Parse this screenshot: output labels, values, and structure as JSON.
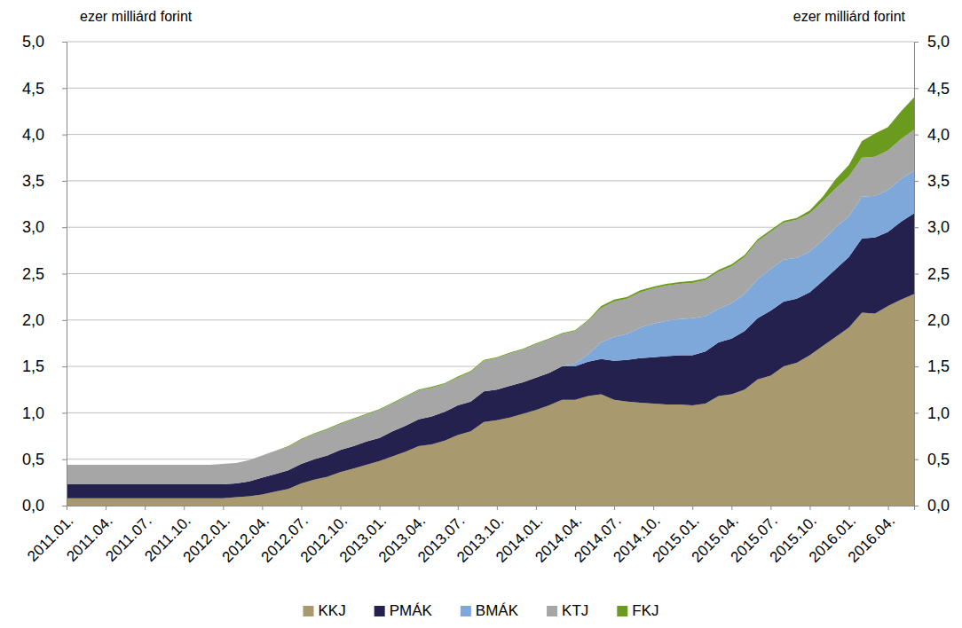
{
  "chart_data": {
    "type": "area",
    "stacked": true,
    "grid": true,
    "legend": "bottom",
    "ylabel": "ezer milliárd forint",
    "y2label": "ezer milliárd forint",
    "categories": [
      "2011.01.",
      null,
      null,
      "2011.04.",
      null,
      null,
      "2011.07.",
      null,
      null,
      "2011.10.",
      null,
      null,
      "2012.01.",
      null,
      null,
      "2012.04.",
      null,
      null,
      "2012.07.",
      null,
      null,
      "2012.10.",
      null,
      null,
      "2013.01.",
      null,
      null,
      "2013.04.",
      null,
      null,
      "2013.07.",
      null,
      null,
      "2013.10.",
      null,
      null,
      "2014.01.",
      null,
      null,
      "2014.04.",
      null,
      null,
      "2014.07.",
      null,
      null,
      "2014.10.",
      null,
      null,
      "2015.01.",
      null,
      null,
      "2015.04.",
      null,
      null,
      "2015.07.",
      null,
      null,
      "2015.10.",
      null,
      null,
      "2016.01.",
      null,
      null,
      "2016.04.",
      null,
      null
    ],
    "ylim": [
      0,
      5
    ],
    "yticks": [
      {
        "value": 0,
        "label": "0,0"
      },
      {
        "value": 0.5,
        "label": "0,5"
      },
      {
        "value": 1,
        "label": "1,0"
      },
      {
        "value": 1.5,
        "label": "1,5"
      },
      {
        "value": 2,
        "label": "2,0"
      },
      {
        "value": 2.5,
        "label": "2,5"
      },
      {
        "value": 3,
        "label": "3,0"
      },
      {
        "value": 3.5,
        "label": "3,5"
      },
      {
        "value": 4,
        "label": "4,0"
      },
      {
        "value": 4.5,
        "label": "4,5"
      },
      {
        "value": 5,
        "label": "5,0"
      }
    ],
    "y2lim": [
      0,
      5
    ],
    "y2ticks": [
      {
        "value": 0,
        "label": "0,0"
      },
      {
        "value": 0.5,
        "label": "0,5"
      },
      {
        "value": 1,
        "label": "1,0"
      },
      {
        "value": 1.5,
        "label": "1,5"
      },
      {
        "value": 2,
        "label": "2,0"
      },
      {
        "value": 2.5,
        "label": "2,5"
      },
      {
        "value": 3,
        "label": "3,0"
      },
      {
        "value": 3.5,
        "label": "3,5"
      },
      {
        "value": 4,
        "label": "4,0"
      },
      {
        "value": 4.5,
        "label": "4,5"
      },
      {
        "value": 5,
        "label": "5,0"
      }
    ],
    "series": [
      {
        "name": "KKJ",
        "color": "#a89a6e",
        "values": [
          0.08,
          0.08,
          0.08,
          0.08,
          0.08,
          0.08,
          0.08,
          0.08,
          0.08,
          0.08,
          0.08,
          0.08,
          0.08,
          0.09,
          0.1,
          0.12,
          0.15,
          0.18,
          0.24,
          0.28,
          0.31,
          0.36,
          0.4,
          0.44,
          0.48,
          0.53,
          0.58,
          0.64,
          0.66,
          0.7,
          0.76,
          0.8,
          0.9,
          0.92,
          0.95,
          0.99,
          1.03,
          1.08,
          1.14,
          1.14,
          1.18,
          1.2,
          1.14,
          1.12,
          1.11,
          1.1,
          1.09,
          1.09,
          1.08,
          1.1,
          1.18,
          1.2,
          1.25,
          1.36,
          1.4,
          1.5,
          1.54,
          1.62,
          1.72,
          1.82,
          1.92,
          2.08,
          2.07,
          2.15,
          2.22,
          2.28
        ]
      },
      {
        "name": "PMÁK",
        "color": "#24214f",
        "values": [
          0.15,
          0.15,
          0.15,
          0.15,
          0.15,
          0.15,
          0.15,
          0.15,
          0.15,
          0.15,
          0.15,
          0.15,
          0.15,
          0.15,
          0.16,
          0.18,
          0.19,
          0.2,
          0.21,
          0.22,
          0.23,
          0.24,
          0.24,
          0.25,
          0.25,
          0.27,
          0.28,
          0.29,
          0.3,
          0.31,
          0.32,
          0.32,
          0.33,
          0.33,
          0.34,
          0.34,
          0.35,
          0.35,
          0.36,
          0.36,
          0.37,
          0.38,
          0.42,
          0.45,
          0.48,
          0.5,
          0.52,
          0.53,
          0.54,
          0.56,
          0.58,
          0.6,
          0.63,
          0.66,
          0.7,
          0.7,
          0.69,
          0.68,
          0.7,
          0.73,
          0.76,
          0.8,
          0.82,
          0.8,
          0.84,
          0.87
        ]
      },
      {
        "name": "BMÁK",
        "color": "#7fa8da",
        "values": [
          0,
          0,
          0,
          0,
          0,
          0,
          0,
          0,
          0,
          0,
          0,
          0,
          0,
          0,
          0,
          0,
          0,
          0,
          0,
          0,
          0,
          0,
          0,
          0,
          0,
          0,
          0,
          0,
          0,
          0,
          0,
          0,
          0,
          0,
          0,
          0,
          0,
          0,
          0,
          0.03,
          0.08,
          0.18,
          0.26,
          0.28,
          0.33,
          0.36,
          0.38,
          0.39,
          0.4,
          0.38,
          0.36,
          0.38,
          0.4,
          0.42,
          0.45,
          0.45,
          0.44,
          0.44,
          0.44,
          0.45,
          0.44,
          0.45,
          0.45,
          0.45,
          0.46,
          0.46
        ]
      },
      {
        "name": "KTJ",
        "color": "#a6a6a6",
        "values": [
          0.21,
          0.21,
          0.21,
          0.21,
          0.21,
          0.21,
          0.21,
          0.21,
          0.21,
          0.21,
          0.21,
          0.21,
          0.22,
          0.22,
          0.23,
          0.24,
          0.25,
          0.25,
          0.26,
          0.27,
          0.28,
          0.28,
          0.29,
          0.29,
          0.3,
          0.3,
          0.31,
          0.31,
          0.31,
          0.3,
          0.3,
          0.32,
          0.33,
          0.34,
          0.35,
          0.35,
          0.36,
          0.36,
          0.35,
          0.35,
          0.36,
          0.37,
          0.38,
          0.38,
          0.38,
          0.38,
          0.38,
          0.38,
          0.38,
          0.39,
          0.4,
          0.4,
          0.4,
          0.41,
          0.4,
          0.4,
          0.41,
          0.41,
          0.42,
          0.42,
          0.43,
          0.42,
          0.42,
          0.43,
          0.43,
          0.44
        ]
      },
      {
        "name": "FKJ",
        "color": "#6b9b1e",
        "values": [
          0,
          0,
          0,
          0,
          0,
          0,
          0,
          0,
          0,
          0,
          0,
          0,
          0,
          0,
          0,
          0,
          0,
          0.01,
          0.01,
          0.01,
          0.01,
          0.01,
          0.01,
          0.01,
          0.01,
          0.01,
          0.01,
          0.01,
          0.01,
          0.01,
          0.01,
          0.01,
          0.01,
          0.01,
          0.01,
          0.01,
          0.01,
          0.01,
          0.01,
          0.01,
          0.01,
          0.02,
          0.02,
          0.02,
          0.02,
          0.02,
          0.02,
          0.02,
          0.02,
          0.02,
          0.02,
          0.02,
          0.02,
          0.02,
          0.02,
          0.02,
          0.02,
          0.03,
          0.05,
          0.1,
          0.12,
          0.18,
          0.25,
          0.25,
          0.3,
          0.35
        ]
      }
    ]
  }
}
